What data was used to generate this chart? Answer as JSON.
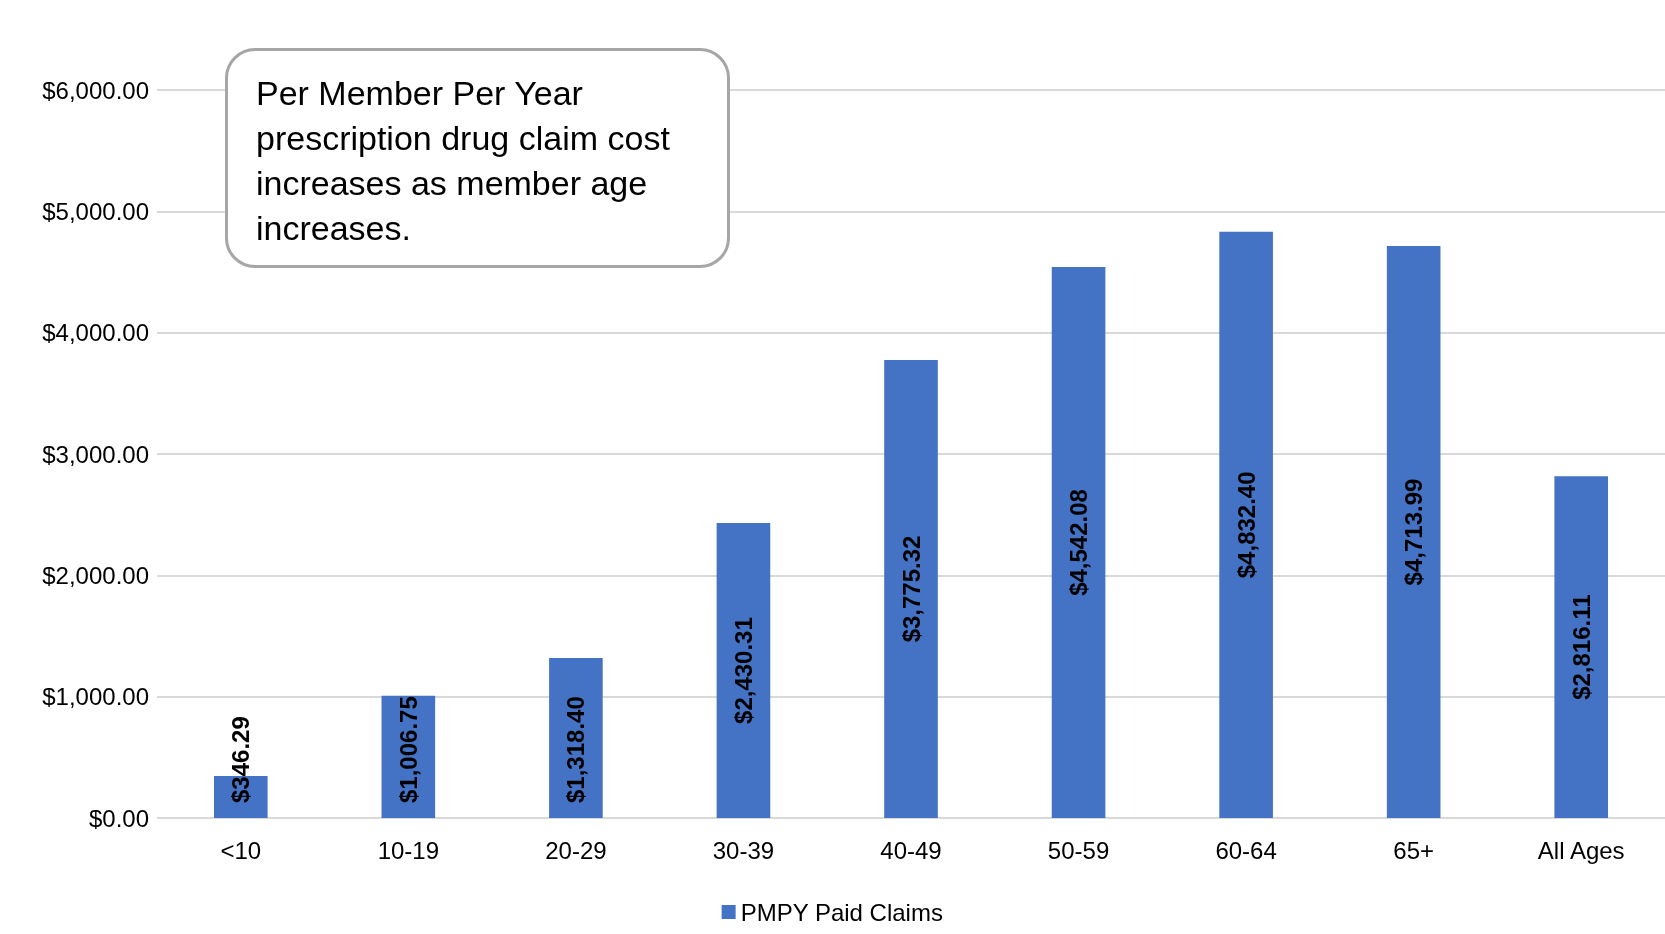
{
  "chart_data": {
    "type": "bar",
    "categories": [
      "<10",
      "10-19",
      "20-29",
      "30-39",
      "40-49",
      "50-59",
      "60-64",
      "65+",
      "All Ages"
    ],
    "series": [
      {
        "name": "PMPY Paid Claims",
        "color": "#4472c4",
        "values": [
          346.29,
          1006.75,
          1318.4,
          2430.31,
          3775.32,
          4542.08,
          4832.4,
          4713.99,
          2816.11
        ],
        "value_labels": [
          "$346.29",
          "$1,006.75",
          "$1,318.40",
          "$2,430.31",
          "$3,775.32",
          "$4,542.08",
          "$4,832.40",
          "$4,713.99",
          "$2,816.11"
        ]
      }
    ],
    "ylim": [
      0,
      6000
    ],
    "yticks": [
      {
        "value": 0,
        "label": "$0.00"
      },
      {
        "value": 1000,
        "label": "$1,000.00"
      },
      {
        "value": 2000,
        "label": "$2,000.00"
      },
      {
        "value": 3000,
        "label": "$3,000.00"
      },
      {
        "value": 4000,
        "label": "$4,000.00"
      },
      {
        "value": 5000,
        "label": "$5,000.00"
      },
      {
        "value": 6000,
        "label": "$6,000.00"
      }
    ],
    "grid": "y",
    "legend": "bottom",
    "annotations": [
      "Per Member Per Year prescription drug claim cost increases as member age increases."
    ]
  }
}
